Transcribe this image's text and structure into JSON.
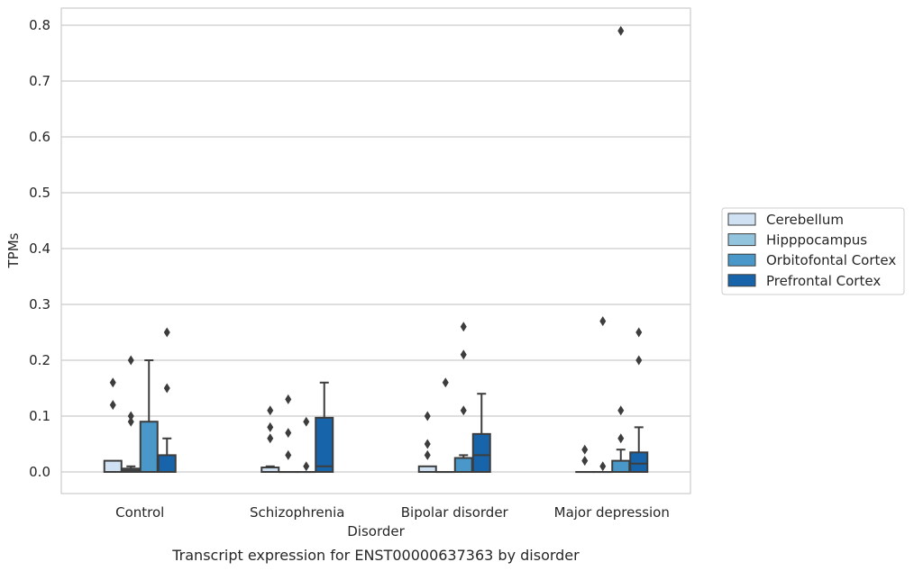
{
  "chart_data": {
    "type": "boxplot",
    "title": "Transcript expression for ENST00000637363 by disorder",
    "xlabel": "Disorder",
    "ylabel": "TPMs",
    "ylim": [
      -0.04,
      0.83
    ],
    "yticks": [
      0.0,
      0.1,
      0.2,
      0.3,
      0.4,
      0.5,
      0.6,
      0.7,
      0.8
    ],
    "ytick_labels": [
      "0.0",
      "0.1",
      "0.2",
      "0.3",
      "0.4",
      "0.5",
      "0.6",
      "0.7",
      "0.8"
    ],
    "grid": true,
    "legend_position": "right-outside",
    "categories": [
      "Control",
      "Schizophrenia",
      "Bipolar disorder",
      "Major depression"
    ],
    "series": [
      {
        "name": "Cerebellum",
        "color": "#cfe1f2",
        "boxes": [
          {
            "min": 0,
            "q1": 0,
            "median": 0,
            "q3": 0.02,
            "max": 0.02,
            "outliers": [
              0.12,
              0.16
            ]
          },
          {
            "min": 0,
            "q1": 0,
            "median": 0,
            "q3": 0.008,
            "max": 0.01,
            "outliers": [
              0.06,
              0.08,
              0.11
            ]
          },
          {
            "min": 0,
            "q1": 0,
            "median": 0,
            "q3": 0.01,
            "max": 0.01,
            "outliers": [
              0.03,
              0.05,
              0.1
            ]
          },
          {
            "min": 0,
            "q1": 0,
            "median": 0,
            "q3": 0,
            "max": 0,
            "outliers": [
              0.02,
              0.04
            ]
          }
        ]
      },
      {
        "name": "Hipppocampus",
        "color": "#93c4de",
        "boxes": [
          {
            "min": 0,
            "q1": 0,
            "median": 0.003,
            "q3": 0.006,
            "max": 0.01,
            "outliers": [
              0.09,
              0.1,
              0.2
            ]
          },
          {
            "min": 0,
            "q1": 0,
            "median": 0,
            "q3": 0,
            "max": 0,
            "outliers": [
              0.03,
              0.07,
              0.13
            ]
          },
          {
            "min": 0,
            "q1": 0,
            "median": 0,
            "q3": 0,
            "max": 0,
            "outliers": [
              0.16
            ]
          },
          {
            "min": 0,
            "q1": 0,
            "median": 0,
            "q3": 0,
            "max": 0,
            "outliers": [
              0.01,
              0.27
            ]
          }
        ]
      },
      {
        "name": "Orbitofontal Cortex",
        "color": "#4a98c9",
        "boxes": [
          {
            "min": 0,
            "q1": 0,
            "median": 0,
            "q3": 0.09,
            "max": 0.2,
            "outliers": []
          },
          {
            "min": 0,
            "q1": 0,
            "median": 0,
            "q3": 0,
            "max": 0,
            "outliers": [
              0.01,
              0.09
            ]
          },
          {
            "min": 0,
            "q1": 0,
            "median": 0,
            "q3": 0.025,
            "max": 0.03,
            "outliers": [
              0.11,
              0.21,
              0.26
            ]
          },
          {
            "min": 0,
            "q1": 0,
            "median": 0,
            "q3": 0.02,
            "max": 0.04,
            "outliers": [
              0.06,
              0.11,
              0.79
            ]
          }
        ]
      },
      {
        "name": "Prefrontal Cortex",
        "color": "#1764ab",
        "boxes": [
          {
            "min": 0,
            "q1": 0,
            "median": 0,
            "q3": 0.03,
            "max": 0.06,
            "outliers": [
              0.15,
              0.25
            ]
          },
          {
            "min": 0,
            "q1": 0,
            "median": 0.01,
            "q3": 0.097,
            "max": 0.16,
            "outliers": []
          },
          {
            "min": 0,
            "q1": 0,
            "median": 0.03,
            "q3": 0.068,
            "max": 0.14,
            "outliers": []
          },
          {
            "min": 0,
            "q1": 0,
            "median": 0.015,
            "q3": 0.035,
            "max": 0.08,
            "outliers": [
              0.2,
              0.25
            ]
          }
        ]
      }
    ]
  }
}
